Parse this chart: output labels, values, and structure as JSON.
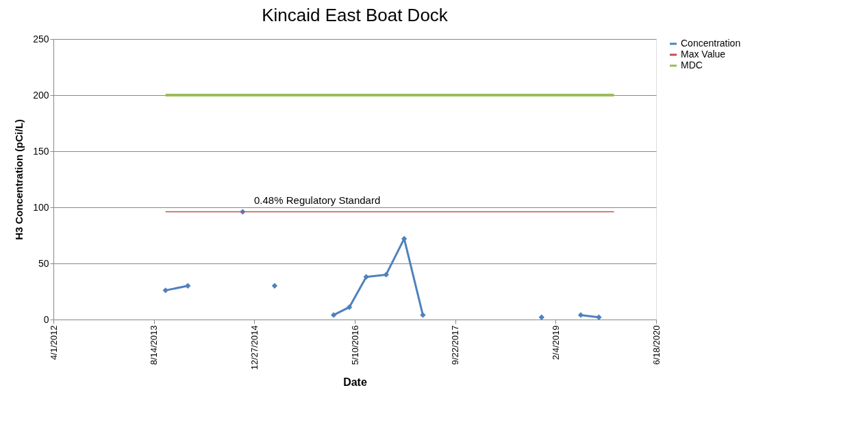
{
  "chart_data": {
    "type": "line",
    "title": "Kincaid East Boat Dock",
    "xlabel": "Date",
    "ylabel": "H3 Concentration (pCi/L)",
    "series": [
      {
        "name": "Concentration",
        "color": "#4f81bd",
        "marker": "diamond",
        "x": [
          "2013-10-11",
          "2014-01-30",
          "2014-06-20",
          "2014-10-30",
          "2015-01-19",
          "2015-04-07",
          "2015-09-22",
          "2016-01-26",
          "2016-04-13",
          "2016-07-06",
          "2016-10-13",
          "2017-01-11",
          "2017-04-14",
          "2018-01-09",
          "2018-11-26",
          "2019-02-03",
          "2019-06-09",
          "2019-09-07"
        ],
        "values": [
          26,
          30,
          null,
          96,
          null,
          30,
          null,
          4,
          11,
          38,
          40,
          72,
          4,
          null,
          2,
          null,
          4,
          2
        ]
      },
      {
        "name": "Max Value",
        "color": "#c0504d",
        "marker": "none",
        "x": [
          "2013-10-11",
          "2019-11-21"
        ],
        "values": [
          96,
          96
        ]
      },
      {
        "name": "MDC",
        "color": "#9bbb59",
        "marker": "none",
        "x": [
          "2013-10-11",
          "2019-11-21"
        ],
        "values": [
          200,
          200
        ]
      }
    ],
    "annotations": [
      {
        "text": "0.48% Regulatory Standard",
        "x": "2015-11-05",
        "y": 96
      }
    ],
    "xlim": [
      "2012-04-01",
      "2020-06-18"
    ],
    "xticks": [
      {
        "value": "2012-04-01",
        "label": "4/1/2012"
      },
      {
        "value": "2013-08-14",
        "label": "8/14/2013"
      },
      {
        "value": "2014-12-27",
        "label": "12/27/2014"
      },
      {
        "value": "2016-05-10",
        "label": "5/10/2016"
      },
      {
        "value": "2017-09-22",
        "label": "9/22/2017"
      },
      {
        "value": "2019-02-04",
        "label": "2/4/2019"
      },
      {
        "value": "2020-06-18",
        "label": "6/18/2020"
      }
    ],
    "ylim": [
      0,
      250
    ],
    "yticks": [
      0,
      50,
      100,
      150,
      200,
      250
    ],
    "grid": "y",
    "legend": "right",
    "line_style": "solid"
  }
}
